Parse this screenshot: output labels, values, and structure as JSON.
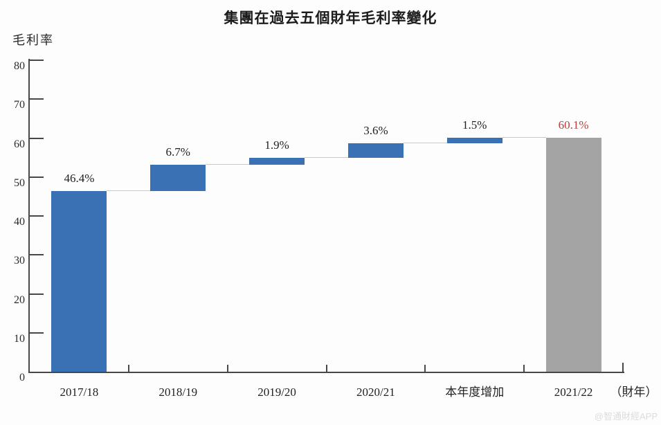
{
  "chart_data": {
    "type": "bar",
    "subtype": "waterfall",
    "title": "集團在過去五個財年毛利率變化",
    "ylabel": "毛利率",
    "xlabel_suffix": "（財年）",
    "ylim": [
      0,
      80
    ],
    "yticks": [
      0,
      10,
      20,
      30,
      40,
      50,
      60,
      70,
      80
    ],
    "grid": false,
    "legend": "none",
    "bars": [
      {
        "category": "2017/18",
        "label": "46.4%",
        "value": 46.4,
        "start": 0,
        "end": 46.4,
        "color": "bar_blue",
        "label_color": "text"
      },
      {
        "category": "2018/19",
        "label": "6.7%",
        "value": 6.7,
        "start": 46.4,
        "end": 53.1,
        "color": "bar_blue",
        "label_color": "text"
      },
      {
        "category": "2019/20",
        "label": "1.9%",
        "value": 1.9,
        "start": 53.1,
        "end": 55.0,
        "color": "bar_blue",
        "label_color": "text"
      },
      {
        "category": "2020/21",
        "label": "3.6%",
        "value": 3.6,
        "start": 55.0,
        "end": 58.6,
        "color": "bar_blue",
        "label_color": "text"
      },
      {
        "category": "本年度增加",
        "label": "1.5%",
        "value": 1.5,
        "start": 58.6,
        "end": 60.1,
        "color": "bar_blue",
        "label_color": "text"
      },
      {
        "category": "2021/22",
        "label": "60.1%",
        "value": 60.1,
        "start": 0,
        "end": 60.1,
        "color": "bar_gray",
        "label_color": "red_label"
      }
    ],
    "colors": {
      "bar_blue": "#3a71b5",
      "bar_gray": "#a4a4a4",
      "red_label": "#c23a3a",
      "text": "#1f1f1f",
      "connector": "#c9c9c9",
      "axis": "#474747"
    },
    "watermark": "@智通財經APP"
  }
}
